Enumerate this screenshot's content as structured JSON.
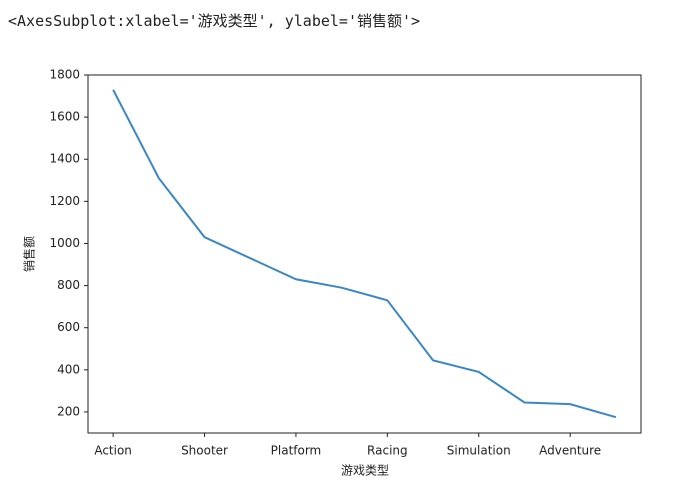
{
  "header": {
    "repr": "<AxesSubplot:xlabel='游戏类型', ylabel='销售额'>"
  },
  "chart_data": {
    "type": "line",
    "xlabel": "游戏类型",
    "ylabel": "销售额",
    "categories": [
      "Action",
      null,
      "Shooter",
      null,
      "Platform",
      null,
      "Racing",
      null,
      "Simulation",
      null,
      "Adventure",
      null
    ],
    "values": [
      1730,
      1310,
      1030,
      930,
      830,
      790,
      730,
      445,
      390,
      245,
      237,
      175
    ],
    "color": "#3a87c4",
    "xlim": [
      -0.55,
      11.55
    ],
    "ylim": [
      100,
      1800
    ],
    "yticks": [
      200,
      400,
      600,
      800,
      1000,
      1200,
      1400,
      1600,
      1800
    ],
    "grid": false
  }
}
